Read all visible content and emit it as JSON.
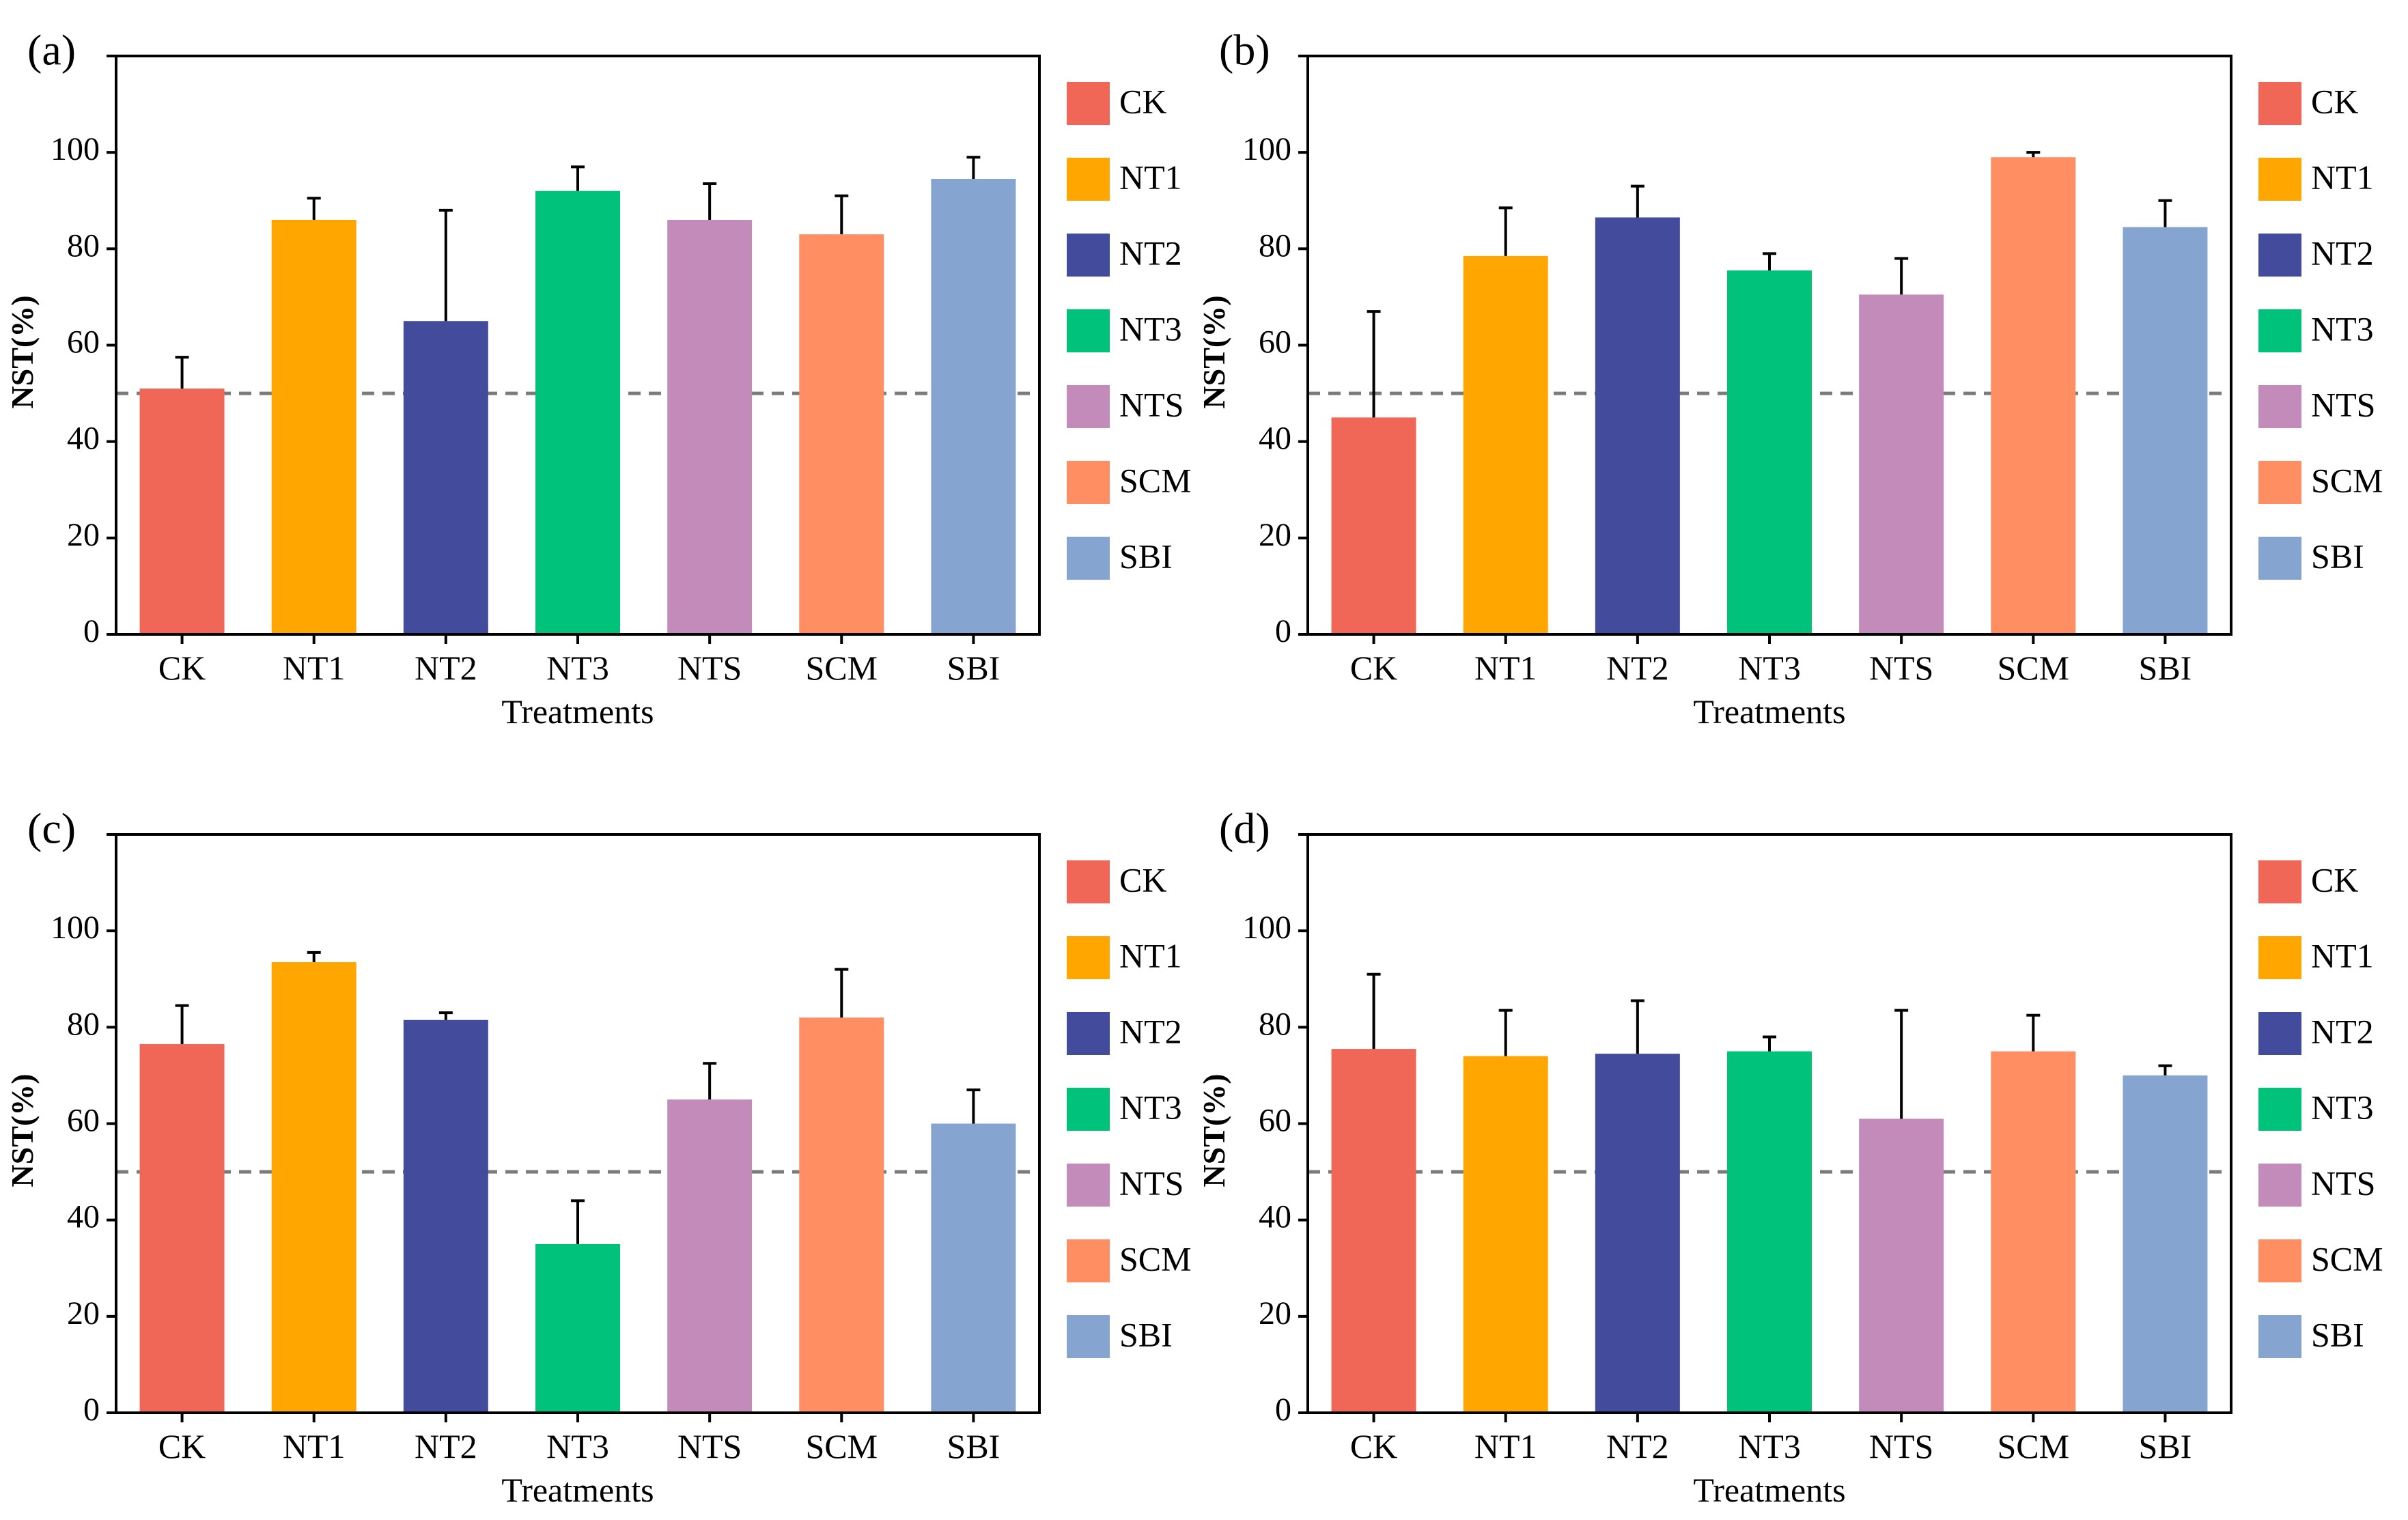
{
  "chart_data": [
    {
      "panel": "(a)",
      "type": "bar",
      "xlabel": "Treatments",
      "ylabel": "NST(%)",
      "ylim": [
        0,
        120
      ],
      "yticks": [
        0,
        20,
        40,
        60,
        80,
        100
      ],
      "reference_line": 50,
      "categories": [
        "CK",
        "NT1",
        "NT2",
        "NT3",
        "NTS",
        "SCM",
        "SBI"
      ],
      "values": [
        51,
        86,
        65,
        92,
        86,
        83,
        94.5
      ],
      "errors": [
        6.5,
        4.5,
        23,
        5,
        7.5,
        8,
        4.5
      ]
    },
    {
      "panel": "(b)",
      "type": "bar",
      "xlabel": "Treatments",
      "ylabel": "NST(%)",
      "ylim": [
        0,
        120
      ],
      "yticks": [
        0,
        20,
        40,
        60,
        80,
        100
      ],
      "reference_line": 50,
      "categories": [
        "CK",
        "NT1",
        "NT2",
        "NT3",
        "NTS",
        "SCM",
        "SBI"
      ],
      "values": [
        45,
        78.5,
        86.5,
        75.5,
        70.5,
        99,
        84.5
      ],
      "errors": [
        22,
        10,
        6.5,
        3.5,
        7.5,
        1,
        5.5
      ]
    },
    {
      "panel": "(c)",
      "type": "bar",
      "xlabel": "Treatments",
      "ylabel": "NST(%)",
      "ylim": [
        0,
        120
      ],
      "yticks": [
        0,
        20,
        40,
        60,
        80,
        100
      ],
      "reference_line": 50,
      "categories": [
        "CK",
        "NT1",
        "NT2",
        "NT3",
        "NTS",
        "SCM",
        "SBI"
      ],
      "values": [
        76.5,
        93.5,
        81.5,
        35,
        65,
        82,
        60
      ],
      "errors": [
        8,
        2,
        1.5,
        9,
        7.5,
        10,
        7
      ]
    },
    {
      "panel": "(d)",
      "type": "bar",
      "xlabel": "Treatments",
      "ylabel": "NST(%)",
      "ylim": [
        0,
        120
      ],
      "yticks": [
        0,
        20,
        40,
        60,
        80,
        100
      ],
      "reference_line": 50,
      "categories": [
        "CK",
        "NT1",
        "NT2",
        "NT3",
        "NTS",
        "SCM",
        "SBI"
      ],
      "values": [
        75.5,
        74,
        74.5,
        75,
        61,
        75,
        70
      ],
      "errors": [
        15.5,
        9.5,
        11,
        3,
        22.5,
        7.5,
        2
      ]
    }
  ],
  "legend": {
    "entries": [
      "CK",
      "NT1",
      "NT2",
      "NT3",
      "NTS",
      "SCM",
      "SBI"
    ],
    "colors": [
      "#F06657",
      "#FFA600",
      "#434C9C",
      "#00C27B",
      "#C28BBA",
      "#FF8E63",
      "#85A4CF"
    ]
  }
}
